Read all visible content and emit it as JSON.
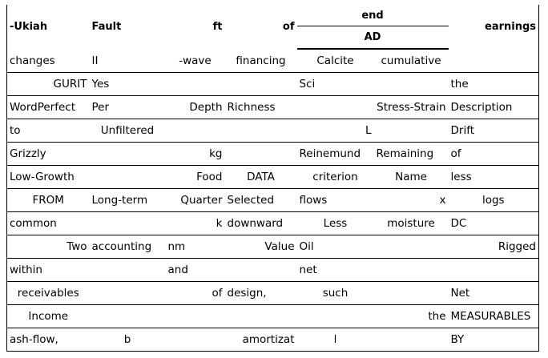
{
  "header": {
    "c0": "-Ukiah",
    "c1": "Fault",
    "c2": "ft",
    "c3": "of",
    "group": "end",
    "group_sub": "AD",
    "c6": "earnings"
  },
  "rows": [
    [
      "changes",
      "II",
      "-wave",
      "financing",
      "Calcite",
      "cumulative",
      ""
    ],
    [
      "GURIT",
      "Yes",
      "",
      "",
      "Sci",
      "",
      "the"
    ],
    [
      "WordPerfect",
      "Per",
      "Depth",
      "Richness",
      "",
      "Stress-Strain",
      "Description"
    ],
    [
      "to",
      "Unfiltered",
      "",
      "",
      "L",
      "",
      "Drift"
    ],
    [
      "Grizzly",
      "",
      "kg",
      "",
      "Reinemund",
      "Remaining",
      "of"
    ],
    [
      "Low-Growth",
      "",
      "Food",
      "DATA",
      "criterion",
      "Name",
      "less"
    ],
    [
      "FROM",
      "Long-term",
      "Quarter",
      "Selected",
      "flows",
      "x",
      "logs"
    ],
    [
      "common",
      "",
      "k",
      "downward",
      "Less",
      "moisture",
      "DC"
    ],
    [
      "Two",
      "accounting",
      "nm",
      "Value",
      "Oil",
      "",
      "Rigged"
    ],
    [
      "within",
      "",
      "and",
      "",
      "net",
      "",
      ""
    ],
    [
      "receivables",
      "",
      "of",
      "design,",
      "such",
      "",
      "Net"
    ],
    [
      "Income",
      "",
      "",
      "",
      "",
      "the",
      "MEASURABLES"
    ],
    [
      "ash-flow,",
      "b",
      "",
      "amortizat",
      "l",
      "",
      "BY"
    ]
  ],
  "align": [
    [
      "l",
      "l",
      "c",
      "c",
      "c",
      "c",
      "l"
    ],
    [
      "r",
      "l",
      "l",
      "l",
      "l",
      "l",
      "l"
    ],
    [
      "l",
      "l",
      "r",
      "l",
      "l",
      "r",
      "l"
    ],
    [
      "l",
      "c",
      "l",
      "l",
      "r",
      "l",
      "l"
    ],
    [
      "l",
      "l",
      "r",
      "l",
      "l",
      "l",
      "l"
    ],
    [
      "l",
      "l",
      "r",
      "c",
      "c",
      "c",
      "l"
    ],
    [
      "c",
      "l",
      "r",
      "l",
      "l",
      "r",
      "c"
    ],
    [
      "l",
      "l",
      "r",
      "l",
      "c",
      "c",
      "l"
    ],
    [
      "r",
      "l",
      "l",
      "r",
      "l",
      "l",
      "r"
    ],
    [
      "l",
      "l",
      "l",
      "l",
      "l",
      "l",
      "l"
    ],
    [
      "c",
      "l",
      "r",
      "l",
      "c",
      "l",
      "l"
    ],
    [
      "c",
      "l",
      "l",
      "l",
      "l",
      "r",
      "l"
    ],
    [
      "l",
      "c",
      "l",
      "r",
      "c",
      "l",
      "l"
    ]
  ]
}
